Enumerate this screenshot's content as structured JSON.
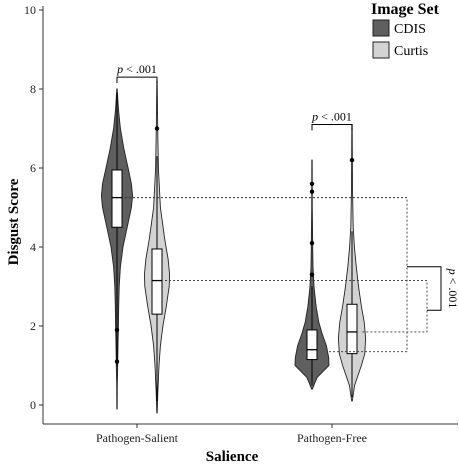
{
  "chart_data": {
    "type": "violin",
    "xlabel": "Salience",
    "ylabel": "Disgust Score",
    "ylim": [
      0,
      10
    ],
    "yticks": [
      "0",
      "2",
      "4",
      "6",
      "8",
      "10"
    ],
    "categories": [
      "Pathogen-Salient",
      "Pathogen-Free"
    ],
    "legend_title": "Image Set",
    "legend_position": "top-right",
    "series": [
      {
        "name": "CDIS",
        "color": "#5f5f5f",
        "groups": [
          {
            "category": "Pathogen-Salient",
            "min": -0.1,
            "max": 8.0,
            "q1": 4.5,
            "median": 5.25,
            "q3": 5.95,
            "whisker_low": 1.0,
            "whisker_high": 7.9,
            "outliers": [
              1.1,
              1.9
            ],
            "mean": 5.25,
            "density": [
              [
                -0.1,
                0.01
              ],
              [
                0.5,
                0.02
              ],
              [
                1.0,
                0.04
              ],
              [
                1.5,
                0.06
              ],
              [
                2.0,
                0.08
              ],
              [
                2.5,
                0.1
              ],
              [
                3.0,
                0.13
              ],
              [
                3.5,
                0.2
              ],
              [
                4.0,
                0.35
              ],
              [
                4.5,
                0.6
              ],
              [
                5.0,
                0.85
              ],
              [
                5.3,
                0.92
              ],
              [
                5.6,
                0.85
              ],
              [
                6.0,
                0.65
              ],
              [
                6.5,
                0.4
              ],
              [
                7.0,
                0.2
              ],
              [
                7.5,
                0.08
              ],
              [
                8.0,
                0.01
              ]
            ]
          },
          {
            "category": "Pathogen-Free",
            "min": 0.4,
            "max": 6.2,
            "q1": 1.15,
            "median": 1.4,
            "q3": 1.9,
            "whisker_low": 0.5,
            "whisker_high": 3.0,
            "outliers": [
              3.3,
              4.1,
              5.4,
              5.6
            ],
            "mean": 1.35,
            "density": [
              [
                0.4,
                0.02
              ],
              [
                0.7,
                0.3
              ],
              [
                1.0,
                1.0
              ],
              [
                1.2,
                0.98
              ],
              [
                1.5,
                0.85
              ],
              [
                1.8,
                0.6
              ],
              [
                2.1,
                0.4
              ],
              [
                2.5,
                0.24
              ],
              [
                3.0,
                0.12
              ],
              [
                3.5,
                0.06
              ],
              [
                4.0,
                0.04
              ],
              [
                5.0,
                0.02
              ],
              [
                6.2,
                0.01
              ]
            ]
          }
        ]
      },
      {
        "name": "Curtis",
        "color": "#d3d3d3",
        "groups": [
          {
            "category": "Pathogen-Salient",
            "min": -0.2,
            "max": 8.2,
            "q1": 2.3,
            "median": 3.15,
            "q3": 3.95,
            "whisker_low": 0.1,
            "whisker_high": 6.3,
            "outliers": [
              7.0
            ],
            "mean": 3.15,
            "density": [
              [
                -0.2,
                0.01
              ],
              [
                0.3,
                0.05
              ],
              [
                1.0,
                0.12
              ],
              [
                1.5,
                0.2
              ],
              [
                2.0,
                0.35
              ],
              [
                2.5,
                0.55
              ],
              [
                3.0,
                0.72
              ],
              [
                3.3,
                0.74
              ],
              [
                3.7,
                0.65
              ],
              [
                4.2,
                0.45
              ],
              [
                5.0,
                0.2
              ],
              [
                6.0,
                0.08
              ],
              [
                7.0,
                0.04
              ],
              [
                8.2,
                0.01
              ]
            ]
          },
          {
            "category": "Pathogen-Free",
            "min": 0.1,
            "max": 7.1,
            "q1": 1.3,
            "median": 1.85,
            "q3": 2.55,
            "whisker_low": 0.2,
            "whisker_high": 4.4,
            "outliers": [
              6.2
            ],
            "mean": 1.85,
            "density": [
              [
                0.1,
                0.02
              ],
              [
                0.5,
                0.15
              ],
              [
                1.0,
                0.55
              ],
              [
                1.3,
                0.75
              ],
              [
                1.7,
                0.8
              ],
              [
                2.1,
                0.72
              ],
              [
                2.5,
                0.55
              ],
              [
                3.0,
                0.38
              ],
              [
                3.5,
                0.25
              ],
              [
                4.0,
                0.14
              ],
              [
                4.5,
                0.07
              ],
              [
                5.5,
                0.03
              ],
              [
                7.1,
                0.01
              ]
            ]
          }
        ]
      }
    ],
    "annotations": [
      {
        "text": "p < .001",
        "between": "Pathogen-Salient CDIS vs Curtis"
      },
      {
        "text": "p < .001",
        "between": "Pathogen-Free CDIS vs Curtis"
      },
      {
        "text": "p < .001",
        "between": "interaction"
      }
    ]
  }
}
